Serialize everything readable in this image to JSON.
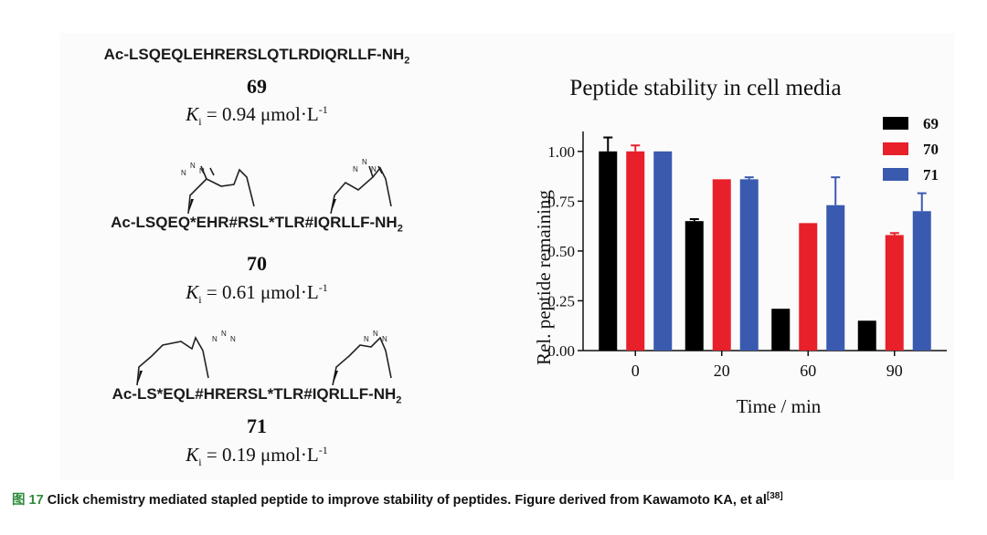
{
  "compounds": [
    {
      "seq_main": "Ac-LSQEQLEHRERSLQTLRDIQRLLF-NH",
      "seq_sub": "2",
      "id": "69",
      "ki_label": "K",
      "ki_sub": "i",
      "ki_value": " = 0.94 μmol·L",
      "ki_exp": "-1"
    },
    {
      "seq_main": "Ac-LSQEQ*EHR#RSL*TLR#IQRLLF-NH",
      "seq_sub": "2",
      "id": "70",
      "ki_label": "K",
      "ki_sub": "i",
      "ki_value": " = 0.61 μmol·L",
      "ki_exp": "-1"
    },
    {
      "seq_main": "Ac-LS*EQL#HRERSL*TLR#IQRLLF-NH",
      "seq_sub": "2",
      "id": "71",
      "ki_label": "K",
      "ki_sub": "i",
      "ki_value": " = 0.19 μmol·L",
      "ki_exp": "-1"
    }
  ],
  "chart_data": {
    "type": "bar",
    "title": "Peptide stability in cell media",
    "xlabel": "Time / min",
    "ylabel": "Rel. peptide remaining",
    "categories": [
      "0",
      "20",
      "60",
      "90"
    ],
    "ylim": [
      0,
      1.1
    ],
    "yticks": [
      "0.00",
      "0.25",
      "0.50",
      "0.75",
      "1.00"
    ],
    "series": [
      {
        "name": "69",
        "color": "#000000",
        "values": [
          1.0,
          0.65,
          0.21,
          0.15
        ],
        "errors": [
          0.07,
          0.01,
          0.0,
          0.0
        ]
      },
      {
        "name": "70",
        "color": "#e8202a",
        "values": [
          1.0,
          0.86,
          0.64,
          0.58
        ],
        "errors": [
          0.03,
          0.0,
          0.0,
          0.01
        ]
      },
      {
        "name": "71",
        "color": "#3a5ab0",
        "values": [
          1.0,
          0.86,
          0.73,
          0.7
        ],
        "errors": [
          0.0,
          0.01,
          0.14,
          0.09
        ]
      }
    ],
    "legend": "top-right"
  },
  "caption": {
    "label": "图 17",
    "text": " Click chemistry mediated stapled peptide to improve stability of peptides. Figure derived from Kawamoto KA, et al",
    "ref": "[38]"
  }
}
